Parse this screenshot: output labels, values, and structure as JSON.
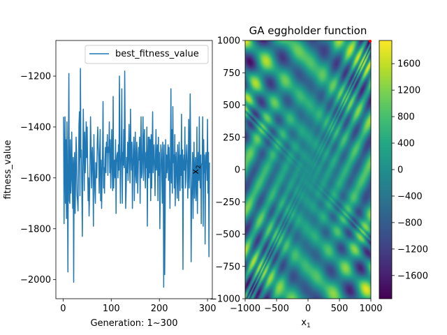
{
  "chart_data": [
    {
      "type": "line",
      "title": "",
      "xlabel": "Generation: 1~300",
      "ylabel": "fitness_value",
      "xlim": [
        -15,
        310
      ],
      "ylim": [
        -2075,
        -1060
      ],
      "xticks": [
        0,
        100,
        200,
        300
      ],
      "yticks": [
        -2000,
        -1800,
        -1600,
        -1400,
        -1200
      ],
      "legend": {
        "position": "upper right"
      },
      "grid": false,
      "series": [
        {
          "name": "best_fitness_value",
          "color": "#1f77b4",
          "x_start": 1,
          "x_step": 1,
          "y": [
            -1360,
            -1780,
            -1540,
            -1360,
            -1700,
            -1450,
            -1760,
            -1380,
            -1620,
            -1970,
            -1500,
            -1190,
            -1690,
            -1700,
            -1450,
            -1660,
            -1590,
            -1420,
            -1610,
            -1720,
            -1520,
            -2010,
            -1560,
            -1500,
            -1740,
            -1610,
            -1440,
            -1500,
            -1670,
            -1690,
            -1730,
            -1580,
            -1390,
            -1340,
            -1670,
            -1170,
            -1520,
            -1490,
            -1660,
            -1830,
            -1530,
            -1330,
            -1500,
            -1650,
            -1420,
            -1580,
            -1520,
            -1380,
            -1520,
            -1400,
            -1550,
            -1690,
            -1600,
            -1750,
            -1660,
            -1540,
            -1360,
            -1460,
            -1640,
            -1520,
            -1480,
            -1590,
            -1790,
            -1430,
            -1560,
            -1650,
            -1700,
            -1540,
            -1570,
            -1600,
            -1460,
            -1400,
            -1480,
            -1520,
            -1660,
            -1500,
            -1410,
            -1690,
            -1530,
            -1720,
            -1600,
            -1500,
            -1300,
            -1640,
            -1560,
            -1660,
            -1530,
            -1480,
            -1580,
            -1460,
            -1500,
            -1430,
            -1590,
            -1480,
            -1500,
            -1380,
            -1580,
            -1450,
            -1640,
            -1530,
            -1410,
            -1560,
            -1650,
            -1280,
            -1640,
            -1570,
            -1530,
            -1600,
            -1450,
            -1740,
            -1540,
            -1510,
            -1500,
            -1600,
            -1470,
            -1570,
            -1200,
            -1450,
            -1700,
            -1570,
            -1480,
            -1250,
            -1700,
            -1500,
            -1550,
            -1410,
            -1560,
            -1180,
            -1440,
            -1720,
            -1650,
            -1520,
            -1580,
            -1460,
            -1610,
            -1500,
            -1390,
            -1540,
            -1620,
            -1330,
            -1500,
            -1570,
            -1460,
            -1720,
            -1560,
            -1490,
            -1440,
            -1690,
            -1550,
            -1420,
            -1590,
            -1620,
            -1460,
            -1500,
            -1660,
            -1570,
            -1480,
            -1530,
            -1440,
            -1700,
            -1510,
            -1360,
            -1600,
            -1580,
            -1490,
            -1360,
            -1610,
            -1460,
            -1410,
            -1580,
            -1640,
            -1500,
            -1560,
            -1400,
            -1790,
            -1530,
            -1440,
            -1600,
            -1440,
            -1580,
            -1450,
            -1690,
            -1430,
            -1640,
            -1500,
            -1340,
            -1580,
            -1520,
            -1470,
            -1560,
            -1670,
            -1520,
            -1410,
            -1570,
            -1520,
            -1470,
            -1690,
            -1440,
            -1590,
            -1500,
            -1800,
            -1630,
            -1470,
            -1490,
            -1580,
            -1700,
            -1460,
            -1540,
            -2030,
            -1470,
            -1980,
            -1740,
            -1450,
            -1600,
            -1510,
            -1580,
            -1530,
            -1470,
            -1610,
            -1480,
            -1560,
            -1720,
            -1520,
            -1250,
            -1620,
            -1410,
            -1660,
            -1320,
            -1540,
            -1510,
            -1640,
            -1430,
            -1710,
            -1540,
            -1500,
            -1600,
            -1680,
            -1470,
            -1550,
            -1690,
            -1460,
            -1540,
            -1650,
            -1510,
            -1590,
            -1350,
            -1640,
            -1490,
            -1960,
            -1540,
            -1510,
            -1570,
            -1400,
            -1640,
            -1610,
            -1510,
            -1470,
            -1540,
            -1680,
            -1560,
            -1370,
            -1640,
            -1520,
            -1270,
            -1490,
            -1930,
            -1700,
            -1610,
            -1500,
            -1760,
            -1560,
            -1460,
            -1680,
            -1570,
            -1520,
            -1690,
            -1640,
            -1400,
            -1740,
            -1560,
            -1500,
            -1610,
            -1360,
            -1590,
            -1640,
            -1510,
            -1780,
            -1550,
            -1540,
            -1360,
            -1790,
            -1450,
            -1580,
            -1510,
            -1860,
            -1550,
            -1500,
            -1550,
            -1610,
            -1370,
            -1660,
            -1500,
            -1910,
            -1540
          ]
        }
      ]
    },
    {
      "type": "heatmap",
      "title": "GA eggholder function",
      "xlabel_main": "x",
      "xlabel_sub": "1",
      "ylabel_main": "x",
      "ylabel_sub": "2",
      "xlim": [
        -1000,
        1000
      ],
      "ylim": [
        -1000,
        1000
      ],
      "xticks": [
        -1000,
        -500,
        0,
        500,
        1000
      ],
      "yticks": [
        -1000,
        -750,
        -500,
        -250,
        0,
        250,
        500,
        750,
        1000
      ],
      "function": "eggholder",
      "colormap": "viridis",
      "colorbar": {
        "range": [
          -1950,
          1950
        ],
        "ticks": [
          1600,
          1200,
          800,
          400,
          0,
          -400,
          -800,
          -1200,
          -1600
        ]
      },
      "marker": {
        "x": 1000,
        "y": 1000,
        "color": "#ff0000"
      }
    }
  ]
}
